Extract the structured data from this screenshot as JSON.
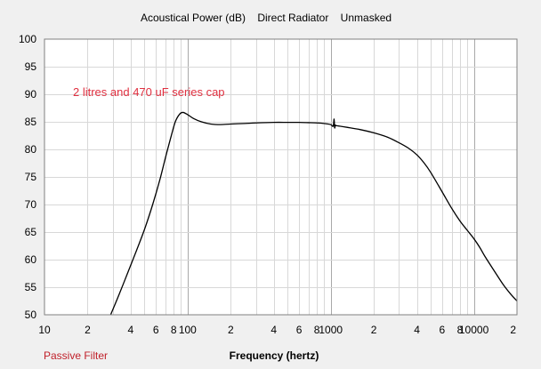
{
  "chart_data": {
    "type": "line",
    "title": "Acoustical Power (dB)    Direct Radiator    Unmasked",
    "xlabel": "Frequency (hertz)",
    "ylabel": "",
    "xscale": "log",
    "xlim": [
      10,
      20000
    ],
    "ylim": [
      50,
      100
    ],
    "grid": true,
    "y_ticks": [
      "100",
      "95",
      "90",
      "85",
      "80",
      "75",
      "70",
      "65",
      "60",
      "55",
      "50"
    ],
    "x_ticks": [
      {
        "value": 10,
        "label": "10"
      },
      {
        "value": 20,
        "label": "2"
      },
      {
        "value": 40,
        "label": "4"
      },
      {
        "value": 60,
        "label": "6"
      },
      {
        "value": 80,
        "label": "8"
      },
      {
        "value": 100,
        "label": "100"
      },
      {
        "value": 200,
        "label": "2"
      },
      {
        "value": 400,
        "label": "4"
      },
      {
        "value": 600,
        "label": "6"
      },
      {
        "value": 800,
        "label": "8"
      },
      {
        "value": 1000,
        "label": "1000"
      },
      {
        "value": 2000,
        "label": "2"
      },
      {
        "value": 4000,
        "label": "4"
      },
      {
        "value": 6000,
        "label": "6"
      },
      {
        "value": 8000,
        "label": "8"
      },
      {
        "value": 10000,
        "label": "10000"
      },
      {
        "value": 20000,
        "label": "2"
      }
    ],
    "annotation": "2 litres and 470 uF series cap",
    "series": [
      {
        "color": "#000000",
        "x": [
          29,
          33,
          38,
          44,
          50,
          57,
          64,
          70,
          76,
          82,
          88,
          93,
          100,
          110,
          125,
          145,
          170,
          200,
          250,
          300,
          400,
          500,
          600,
          700,
          800,
          900,
          1000,
          1040,
          1055,
          1065,
          1075,
          1085,
          1100,
          1300,
          1600,
          2000,
          2500,
          3000,
          3500,
          4000,
          4500,
          5000,
          6000,
          7000,
          8000,
          9000,
          10000,
          11000,
          12000,
          14000,
          16000,
          18000,
          20000
        ],
        "y": [
          50,
          53.5,
          57.5,
          61.7,
          65.5,
          70,
          74.5,
          78.5,
          82,
          85,
          86.4,
          86.7,
          86.3,
          85.6,
          85,
          84.6,
          84.5,
          84.6,
          84.7,
          84.8,
          84.9,
          84.9,
          84.9,
          84.85,
          84.8,
          84.7,
          84.5,
          84.2,
          85.5,
          83.9,
          84.4,
          84.3,
          84.3,
          84,
          83.6,
          83,
          82.2,
          81.2,
          80.2,
          79,
          77.5,
          75.8,
          72.3,
          69.3,
          67,
          65.3,
          63.8,
          62.2,
          60.5,
          57.8,
          55.5,
          53.8,
          52.5
        ]
      }
    ]
  },
  "footer": {
    "filter_label": "Passive Filter"
  },
  "colors": {
    "plot_bg": "#ffffff",
    "page_bg": "#f0f0f0",
    "grid": "#d8d8d8",
    "grid_decade": "#a9a9a9",
    "annotation": "#e03040",
    "footer_text": "#c0202a",
    "curve": "#000000"
  }
}
